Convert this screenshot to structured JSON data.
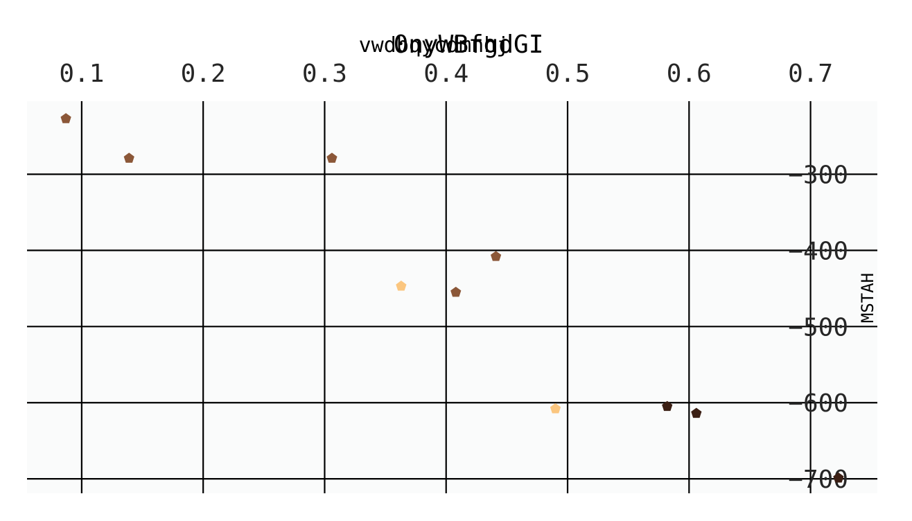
{
  "chart_data": {
    "type": "scatter",
    "title": "0nyWBfgdGI",
    "subtitle": "vwdbqycdmnhj",
    "xlabel": "",
    "ylabel": "MSTAH",
    "xlim": [
      0.055,
      0.755
    ],
    "ylim": [
      -719,
      -204
    ],
    "x_ticks": [
      0.1,
      0.2,
      0.3,
      0.4,
      0.5,
      0.6,
      0.7
    ],
    "x_tick_labels": [
      "0.1",
      "0.2",
      "0.3",
      "0.4",
      "0.5",
      "0.6",
      "0.7"
    ],
    "y_ticks": [
      -300,
      -400,
      -500,
      -600,
      -700
    ],
    "y_tick_labels": [
      "−300",
      "−400",
      "−500",
      "−600",
      "−700"
    ],
    "x_axis_position": "top",
    "y_axis_position": "right",
    "grid": true,
    "legend": "none",
    "marker": "pentagon",
    "colors": {
      "plot_background": "#fafbfb",
      "grid": "#000000",
      "tick_text": "#262626"
    },
    "points": [
      {
        "x": 0.087,
        "y": -227,
        "color": "#8b5738"
      },
      {
        "x": 0.139,
        "y": -279,
        "color": "#8b5738"
      },
      {
        "x": 0.306,
        "y": -279,
        "color": "#8b5738"
      },
      {
        "x": 0.441,
        "y": -408,
        "color": "#8b5738"
      },
      {
        "x": 0.363,
        "y": -447,
        "color": "#fbc67f"
      },
      {
        "x": 0.408,
        "y": -455,
        "color": "#8b5738"
      },
      {
        "x": 0.49,
        "y": -608,
        "color": "#fbc67f"
      },
      {
        "x": 0.582,
        "y": -605,
        "color": "#3b1f14"
      },
      {
        "x": 0.606,
        "y": -614,
        "color": "#3b1f14"
      },
      {
        "x": 0.723,
        "y": -699,
        "color": "#3b1f14"
      }
    ]
  }
}
